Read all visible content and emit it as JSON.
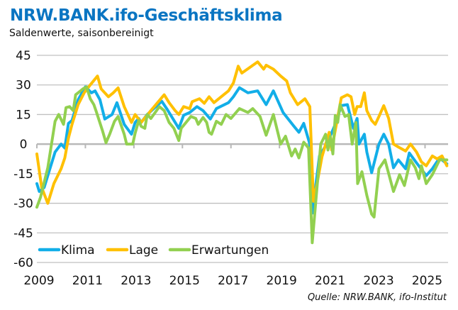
{
  "chart_data": {
    "type": "line",
    "title": "NRW.BANK.ifo-Geschäftsklima",
    "subtitle": "Saldenwerte, saisonbereinigt",
    "source": "Quelle:  NRW.BANK, ifo-Institut",
    "xlabel": "",
    "ylabel": "",
    "xlim": [
      2009,
      2025.95
    ],
    "ylim": [
      -60,
      45
    ],
    "x_ticks": [
      "2009",
      "2011",
      "2013",
      "2015",
      "2017",
      "2019",
      "2021",
      "2023",
      "2025"
    ],
    "y_ticks": [
      "45",
      "30",
      "15",
      "0",
      "-15",
      "-30",
      "-45",
      "-60"
    ],
    "grid": true,
    "legend_position": "bottom-left",
    "colors": {
      "Klima": "#12aee8",
      "Lage": "#ffc000",
      "Erwartungen": "#92d050",
      "title": "#0a75c2"
    },
    "series": [
      {
        "name": "Klima",
        "points": [
          [
            2009.0,
            -20
          ],
          [
            2009.1,
            -24
          ],
          [
            2009.3,
            -22
          ],
          [
            2009.5,
            -14
          ],
          [
            2009.75,
            -4
          ],
          [
            2010.0,
            0
          ],
          [
            2010.15,
            -2
          ],
          [
            2010.3,
            10.5
          ],
          [
            2010.45,
            12
          ],
          [
            2010.7,
            22.5
          ],
          [
            2011.0,
            29
          ],
          [
            2011.25,
            26
          ],
          [
            2011.4,
            27
          ],
          [
            2011.6,
            22.5
          ],
          [
            2011.8,
            12.7
          ],
          [
            2012.1,
            15
          ],
          [
            2012.3,
            21
          ],
          [
            2012.6,
            10
          ],
          [
            2012.9,
            5
          ],
          [
            2013.05,
            11
          ],
          [
            2013.2,
            13
          ],
          [
            2013.3,
            11
          ],
          [
            2013.55,
            15
          ],
          [
            2014.15,
            21.7
          ],
          [
            2014.35,
            18
          ],
          [
            2014.85,
            8
          ],
          [
            2015.05,
            14.6
          ],
          [
            2015.3,
            16
          ],
          [
            2015.6,
            19
          ],
          [
            2015.85,
            17
          ],
          [
            2016.15,
            12.7
          ],
          [
            2016.4,
            18
          ],
          [
            2016.9,
            21
          ],
          [
            2017.1,
            24
          ],
          [
            2017.35,
            28.6
          ],
          [
            2017.7,
            26
          ],
          [
            2018.1,
            27
          ],
          [
            2018.45,
            20
          ],
          [
            2018.75,
            27
          ],
          [
            2019.15,
            16
          ],
          [
            2019.6,
            9
          ],
          [
            2019.8,
            6
          ],
          [
            2020.0,
            10.5
          ],
          [
            2020.25,
            0
          ],
          [
            2020.35,
            -35
          ],
          [
            2020.65,
            -6
          ],
          [
            2020.95,
            0
          ],
          [
            2021.3,
            10
          ],
          [
            2021.55,
            19.5
          ],
          [
            2021.8,
            20
          ],
          [
            2022.05,
            8
          ],
          [
            2022.2,
            13
          ],
          [
            2022.28,
            0
          ],
          [
            2022.5,
            5
          ],
          [
            2022.6,
            -4
          ],
          [
            2022.8,
            -14.5
          ],
          [
            2023.1,
            0
          ],
          [
            2023.3,
            5
          ],
          [
            2023.5,
            0
          ],
          [
            2023.7,
            -12
          ],
          [
            2023.9,
            -8
          ],
          [
            2024.2,
            -12.5
          ],
          [
            2024.35,
            -4.5
          ],
          [
            2024.65,
            -9.5
          ],
          [
            2025.05,
            -16
          ],
          [
            2025.3,
            -12.5
          ],
          [
            2025.6,
            -7
          ],
          [
            2025.9,
            -10
          ]
        ]
      },
      {
        "name": "Lage",
        "points": [
          [
            2009.0,
            -5
          ],
          [
            2009.2,
            -22
          ],
          [
            2009.45,
            -30
          ],
          [
            2009.7,
            -20
          ],
          [
            2010.0,
            -12.5
          ],
          [
            2010.15,
            -7
          ],
          [
            2010.3,
            3
          ],
          [
            2010.45,
            10
          ],
          [
            2010.7,
            20
          ],
          [
            2010.95,
            26
          ],
          [
            2011.2,
            30
          ],
          [
            2011.5,
            34.5
          ],
          [
            2011.65,
            28
          ],
          [
            2011.95,
            24
          ],
          [
            2012.15,
            26
          ],
          [
            2012.35,
            28.5
          ],
          [
            2012.6,
            19
          ],
          [
            2012.9,
            11
          ],
          [
            2013.05,
            15
          ],
          [
            2013.3,
            11
          ],
          [
            2013.7,
            17
          ],
          [
            2014.25,
            25
          ],
          [
            2014.45,
            21
          ],
          [
            2014.7,
            17
          ],
          [
            2014.85,
            15
          ],
          [
            2015.05,
            19
          ],
          [
            2015.3,
            18
          ],
          [
            2015.4,
            21.5
          ],
          [
            2015.7,
            23
          ],
          [
            2015.9,
            20.7
          ],
          [
            2016.1,
            24
          ],
          [
            2016.3,
            21
          ],
          [
            2016.7,
            25
          ],
          [
            2016.9,
            27
          ],
          [
            2017.1,
            31
          ],
          [
            2017.3,
            39.5
          ],
          [
            2017.45,
            36
          ],
          [
            2018.1,
            41.7
          ],
          [
            2018.35,
            38
          ],
          [
            2018.45,
            40
          ],
          [
            2018.75,
            38
          ],
          [
            2019.05,
            34.5
          ],
          [
            2019.3,
            32
          ],
          [
            2019.45,
            26
          ],
          [
            2019.75,
            20
          ],
          [
            2020.05,
            23
          ],
          [
            2020.25,
            19
          ],
          [
            2020.4,
            -29
          ],
          [
            2020.55,
            -20
          ],
          [
            2020.75,
            -6.5
          ],
          [
            2021.05,
            6
          ],
          [
            2021.15,
            -3
          ],
          [
            2021.3,
            7
          ],
          [
            2021.55,
            23.5
          ],
          [
            2021.8,
            25
          ],
          [
            2021.95,
            24
          ],
          [
            2022.1,
            15
          ],
          [
            2022.2,
            19
          ],
          [
            2022.35,
            19
          ],
          [
            2022.5,
            26
          ],
          [
            2022.6,
            17
          ],
          [
            2022.8,
            12
          ],
          [
            2022.95,
            10
          ],
          [
            2023.1,
            14
          ],
          [
            2023.3,
            19.5
          ],
          [
            2023.5,
            13
          ],
          [
            2023.7,
            0
          ],
          [
            2023.9,
            -1.5
          ],
          [
            2024.2,
            -3.5
          ],
          [
            2024.4,
            0
          ],
          [
            2024.65,
            -4
          ],
          [
            2024.85,
            -9
          ],
          [
            2025.05,
            -11
          ],
          [
            2025.3,
            -6
          ],
          [
            2025.5,
            -7.5
          ],
          [
            2025.7,
            -6
          ],
          [
            2025.9,
            -11
          ]
        ]
      },
      {
        "name": "Erwartungen",
        "points": [
          [
            2009.0,
            -32
          ],
          [
            2009.15,
            -27
          ],
          [
            2009.45,
            -12
          ],
          [
            2009.75,
            11.6
          ],
          [
            2009.9,
            15
          ],
          [
            2010.1,
            10
          ],
          [
            2010.2,
            18.5
          ],
          [
            2010.35,
            19
          ],
          [
            2010.5,
            17
          ],
          [
            2010.6,
            25
          ],
          [
            2010.8,
            27
          ],
          [
            2010.9,
            28
          ],
          [
            2011.05,
            29
          ],
          [
            2011.2,
            23
          ],
          [
            2011.35,
            20
          ],
          [
            2011.45,
            16.5
          ],
          [
            2011.7,
            7
          ],
          [
            2011.85,
            0.7
          ],
          [
            2012.0,
            5
          ],
          [
            2012.2,
            11.6
          ],
          [
            2012.35,
            14
          ],
          [
            2012.6,
            5
          ],
          [
            2012.7,
            0
          ],
          [
            2012.95,
            0
          ],
          [
            2013.05,
            5.5
          ],
          [
            2013.2,
            12
          ],
          [
            2013.3,
            9
          ],
          [
            2013.45,
            8
          ],
          [
            2013.55,
            15
          ],
          [
            2013.7,
            13
          ],
          [
            2014.05,
            19
          ],
          [
            2014.25,
            17
          ],
          [
            2014.45,
            11
          ],
          [
            2014.65,
            8
          ],
          [
            2014.85,
            1.8
          ],
          [
            2014.95,
            8
          ],
          [
            2015.15,
            11
          ],
          [
            2015.35,
            14
          ],
          [
            2015.55,
            13
          ],
          [
            2015.65,
            10
          ],
          [
            2015.85,
            13.5
          ],
          [
            2016.0,
            11
          ],
          [
            2016.1,
            6
          ],
          [
            2016.2,
            5
          ],
          [
            2016.4,
            11.6
          ],
          [
            2016.6,
            10
          ],
          [
            2016.8,
            15
          ],
          [
            2017.0,
            13
          ],
          [
            2017.35,
            18
          ],
          [
            2017.7,
            16
          ],
          [
            2017.9,
            18
          ],
          [
            2018.2,
            14
          ],
          [
            2018.45,
            4.5
          ],
          [
            2018.75,
            15
          ],
          [
            2019.05,
            0
          ],
          [
            2019.25,
            4
          ],
          [
            2019.5,
            -6
          ],
          [
            2019.65,
            -2.5
          ],
          [
            2019.8,
            -7
          ],
          [
            2020.0,
            1
          ],
          [
            2020.2,
            -2
          ],
          [
            2020.35,
            -50
          ],
          [
            2020.7,
            0
          ],
          [
            2020.9,
            5
          ],
          [
            2021.0,
            -3
          ],
          [
            2021.1,
            4
          ],
          [
            2021.2,
            -5
          ],
          [
            2021.3,
            14.5
          ],
          [
            2021.4,
            11
          ],
          [
            2021.5,
            20
          ],
          [
            2021.7,
            14
          ],
          [
            2021.85,
            15
          ],
          [
            2022.0,
            0
          ],
          [
            2022.15,
            11
          ],
          [
            2022.22,
            -20
          ],
          [
            2022.4,
            -14
          ],
          [
            2022.6,
            -26
          ],
          [
            2022.8,
            -35.5
          ],
          [
            2022.9,
            -37
          ],
          [
            2023.1,
            -12.5
          ],
          [
            2023.35,
            -8
          ],
          [
            2023.7,
            -24
          ],
          [
            2023.85,
            -19
          ],
          [
            2023.95,
            -15.5
          ],
          [
            2024.15,
            -21
          ],
          [
            2024.4,
            -8
          ],
          [
            2024.6,
            -12
          ],
          [
            2024.75,
            -17.5
          ],
          [
            2024.85,
            -11
          ],
          [
            2025.05,
            -20
          ],
          [
            2025.3,
            -15.5
          ],
          [
            2025.6,
            -8
          ],
          [
            2025.9,
            -8
          ]
        ]
      }
    ]
  }
}
